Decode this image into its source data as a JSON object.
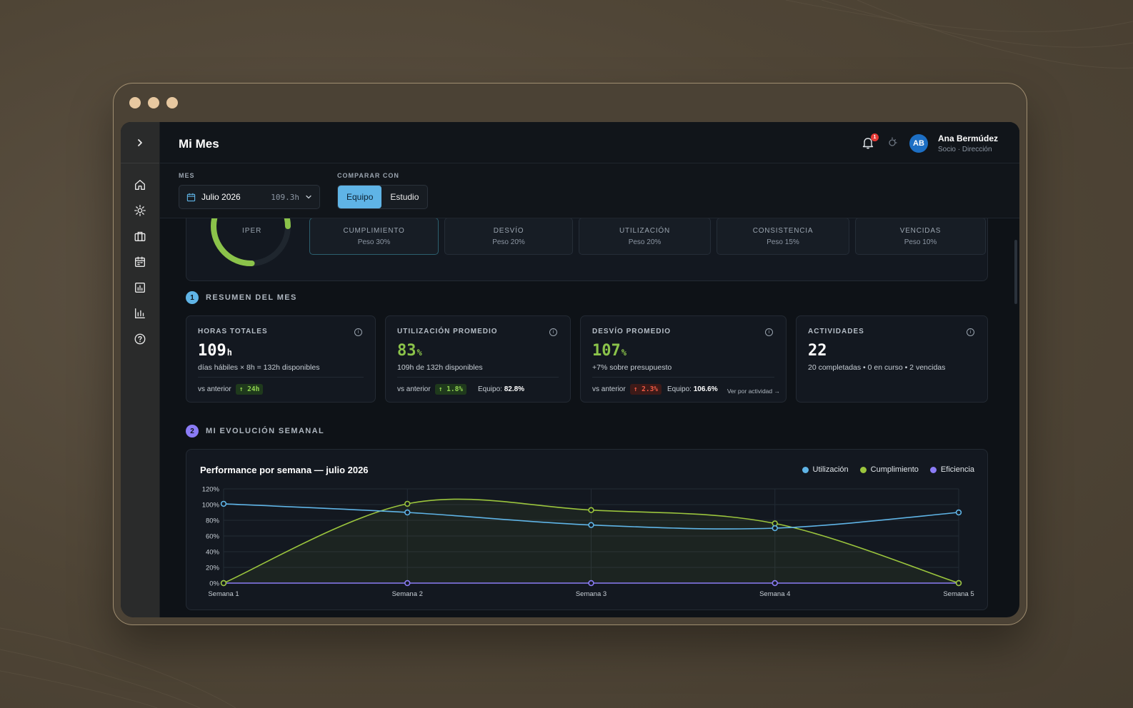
{
  "app": {
    "page_title": "Mi Mes"
  },
  "user": {
    "initials": "AB",
    "name": "Ana Bermúdez",
    "role": "Socio · Dirección",
    "notifications": "1"
  },
  "filters": {
    "month_label": "MES",
    "month_value": "Julio 2026",
    "month_hours": "109.3h",
    "compare_label": "COMPARAR CON",
    "compare_options": [
      "Equipo",
      "Estudio"
    ],
    "compare_selected": "Equipo"
  },
  "score": {
    "ring_label": "IPER",
    "components": [
      {
        "name": "CUMPLIMIENTO",
        "weight": "Peso 30%"
      },
      {
        "name": "DESVÍO",
        "weight": "Peso 20%"
      },
      {
        "name": "UTILIZACIÓN",
        "weight": "Peso 20%"
      },
      {
        "name": "CONSISTENCIA",
        "weight": "Peso 15%"
      },
      {
        "name": "VENCIDAS",
        "weight": "Peso 10%"
      }
    ]
  },
  "sections": [
    {
      "num": "1",
      "title": "RESUMEN DEL MES",
      "color": "#5fb4e6"
    },
    {
      "num": "2",
      "title": "MI EVOLUCIÓN SEMANAL",
      "color": "#8b7cf6"
    }
  ],
  "kpis": [
    {
      "label": "HORAS TOTALES",
      "value": "109",
      "unit": "h",
      "sub": "días hábiles × 8h = 132h disponibles",
      "vs": "vs anterior",
      "delta": "↑ 24h",
      "delta_kind": "up",
      "team": "",
      "team_value": "",
      "more": ""
    },
    {
      "label": "UTILIZACIÓN PROMEDIO",
      "value": "83",
      "unit": "%",
      "sub": "109h de 132h disponibles",
      "vs": "vs anterior",
      "delta": "↑ 1.8%",
      "delta_kind": "up",
      "team": "Equipo:",
      "team_value": "82.8%",
      "more": ""
    },
    {
      "label": "DESVÍO PROMEDIO",
      "value": "107",
      "unit": "%",
      "sub": "+7% sobre presupuesto",
      "vs": "vs anterior",
      "delta": "↑ 2.3%",
      "delta_kind": "bad",
      "team": "Equipo:",
      "team_value": "106.6%",
      "more": "Ver por actividad →"
    },
    {
      "label": "ACTIVIDADES",
      "value": "22",
      "unit": "",
      "sub": "20 completadas • 0 en curso • 2 vencidas",
      "vs": "",
      "delta": "",
      "delta_kind": "",
      "team": "",
      "team_value": "",
      "more": ""
    }
  ],
  "colors": {
    "accent_green": "#8bc34a",
    "accent_blue": "#5fb4e6",
    "accent_purple": "#8b7cf6"
  },
  "chart_data": {
    "type": "line",
    "title": "Performance por semana — julio 2026",
    "categories": [
      "Semana 1",
      "Semana 2",
      "Semana 3",
      "Semana 4",
      "Semana 5"
    ],
    "y_ticks": [
      "0%",
      "20%",
      "40%",
      "60%",
      "80%",
      "100%",
      "120%"
    ],
    "ylim": [
      0,
      120
    ],
    "grid": true,
    "legend_position": "top-right",
    "series": [
      {
        "name": "Utilización",
        "color": "#5fb4e6",
        "values": [
          101,
          90,
          74,
          70,
          90
        ]
      },
      {
        "name": "Cumplimiento",
        "color": "#9bc53d",
        "values": [
          0,
          101,
          93,
          76,
          0
        ]
      },
      {
        "name": "Eficiencia",
        "color": "#8b7cf6",
        "values": [
          0,
          0,
          0,
          0,
          0
        ]
      }
    ]
  }
}
